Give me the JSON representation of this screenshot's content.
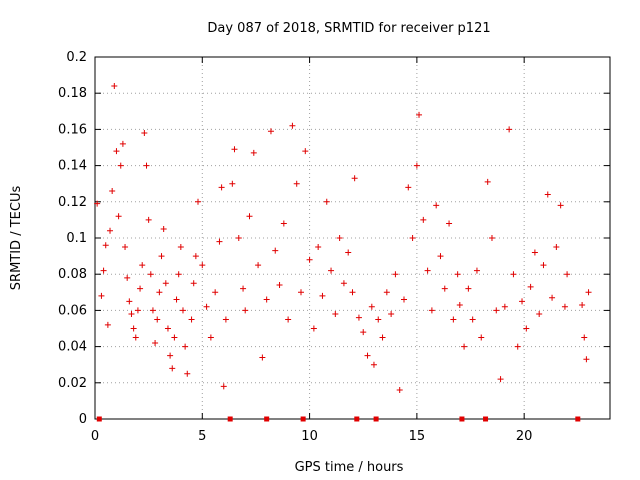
{
  "chart_data": {
    "type": "scatter",
    "title": "Day 087 of 2018, SRMTID for receiver p121",
    "xlabel": "GPS time / hours",
    "ylabel": "SRMTID / TECUs",
    "xlim": [
      0,
      24
    ],
    "ylim": [
      0,
      0.2
    ],
    "x_ticks": [
      0,
      5,
      10,
      15,
      20
    ],
    "x_tick_labels": [
      "0",
      "5",
      "10",
      "15",
      "20"
    ],
    "y_ticks": [
      0,
      0.02,
      0.04,
      0.06,
      0.08,
      0.1,
      0.12,
      0.14,
      0.16,
      0.18,
      0.2
    ],
    "y_tick_labels": [
      "0",
      "0.02",
      "0.04",
      "0.06",
      "0.08",
      "0.1",
      "0.12",
      "0.14",
      "0.16",
      "0.18",
      "0.2"
    ],
    "grid": true,
    "marker": "+",
    "series_color": "#e00000",
    "zero_markers_x": [
      0.2,
      6.3,
      8.0,
      9.7,
      12.2,
      13.1,
      17.1,
      18.2,
      22.5
    ],
    "series": [
      {
        "name": "SRMTID",
        "points": [
          [
            0.1,
            0.119
          ],
          [
            0.3,
            0.068
          ],
          [
            0.4,
            0.082
          ],
          [
            0.5,
            0.096
          ],
          [
            0.6,
            0.052
          ],
          [
            0.7,
            0.104
          ],
          [
            0.8,
            0.126
          ],
          [
            0.9,
            0.184
          ],
          [
            1.0,
            0.148
          ],
          [
            1.1,
            0.112
          ],
          [
            1.2,
            0.14
          ],
          [
            1.3,
            0.152
          ],
          [
            1.4,
            0.095
          ],
          [
            1.5,
            0.078
          ],
          [
            1.6,
            0.065
          ],
          [
            1.7,
            0.058
          ],
          [
            1.8,
            0.05
          ],
          [
            1.9,
            0.045
          ],
          [
            2.0,
            0.06
          ],
          [
            2.1,
            0.072
          ],
          [
            2.2,
            0.085
          ],
          [
            2.3,
            0.158
          ],
          [
            2.4,
            0.14
          ],
          [
            2.5,
            0.11
          ],
          [
            2.6,
            0.08
          ],
          [
            2.7,
            0.06
          ],
          [
            2.8,
            0.042
          ],
          [
            2.9,
            0.055
          ],
          [
            3.0,
            0.07
          ],
          [
            3.1,
            0.09
          ],
          [
            3.2,
            0.105
          ],
          [
            3.3,
            0.075
          ],
          [
            3.4,
            0.05
          ],
          [
            3.5,
            0.035
          ],
          [
            3.6,
            0.028
          ],
          [
            3.7,
            0.045
          ],
          [
            3.8,
            0.066
          ],
          [
            3.9,
            0.08
          ],
          [
            4.0,
            0.095
          ],
          [
            4.1,
            0.06
          ],
          [
            4.2,
            0.04
          ],
          [
            4.3,
            0.025
          ],
          [
            4.5,
            0.055
          ],
          [
            4.6,
            0.075
          ],
          [
            4.7,
            0.09
          ],
          [
            4.8,
            0.12
          ],
          [
            5.0,
            0.085
          ],
          [
            5.2,
            0.062
          ],
          [
            5.4,
            0.045
          ],
          [
            5.6,
            0.07
          ],
          [
            5.8,
            0.098
          ],
          [
            5.9,
            0.128
          ],
          [
            6.0,
            0.018
          ],
          [
            6.1,
            0.055
          ],
          [
            6.4,
            0.13
          ],
          [
            6.5,
            0.149
          ],
          [
            6.7,
            0.1
          ],
          [
            6.9,
            0.072
          ],
          [
            7.0,
            0.06
          ],
          [
            7.2,
            0.112
          ],
          [
            7.4,
            0.147
          ],
          [
            7.6,
            0.085
          ],
          [
            7.8,
            0.034
          ],
          [
            8.0,
            0.066
          ],
          [
            8.2,
            0.159
          ],
          [
            8.4,
            0.093
          ],
          [
            8.6,
            0.074
          ],
          [
            8.8,
            0.108
          ],
          [
            9.0,
            0.055
          ],
          [
            9.2,
            0.162
          ],
          [
            9.4,
            0.13
          ],
          [
            9.6,
            0.07
          ],
          [
            9.8,
            0.148
          ],
          [
            10.0,
            0.088
          ],
          [
            10.2,
            0.05
          ],
          [
            10.4,
            0.095
          ],
          [
            10.6,
            0.068
          ],
          [
            10.8,
            0.12
          ],
          [
            11.0,
            0.082
          ],
          [
            11.2,
            0.058
          ],
          [
            11.4,
            0.1
          ],
          [
            11.6,
            0.075
          ],
          [
            11.8,
            0.092
          ],
          [
            12.0,
            0.07
          ],
          [
            12.1,
            0.133
          ],
          [
            12.3,
            0.056
          ],
          [
            12.5,
            0.048
          ],
          [
            12.7,
            0.035
          ],
          [
            12.9,
            0.062
          ],
          [
            13.0,
            0.03
          ],
          [
            13.2,
            0.055
          ],
          [
            13.4,
            0.045
          ],
          [
            13.6,
            0.07
          ],
          [
            13.8,
            0.058
          ],
          [
            14.0,
            0.08
          ],
          [
            14.2,
            0.016
          ],
          [
            14.4,
            0.066
          ],
          [
            14.6,
            0.128
          ],
          [
            14.8,
            0.1
          ],
          [
            15.0,
            0.14
          ],
          [
            15.1,
            0.168
          ],
          [
            15.3,
            0.11
          ],
          [
            15.5,
            0.082
          ],
          [
            15.7,
            0.06
          ],
          [
            15.9,
            0.118
          ],
          [
            16.1,
            0.09
          ],
          [
            16.3,
            0.072
          ],
          [
            16.5,
            0.108
          ],
          [
            16.7,
            0.055
          ],
          [
            16.9,
            0.08
          ],
          [
            17.0,
            0.063
          ],
          [
            17.2,
            0.04
          ],
          [
            17.4,
            0.072
          ],
          [
            17.6,
            0.055
          ],
          [
            17.8,
            0.082
          ],
          [
            18.0,
            0.045
          ],
          [
            18.3,
            0.131
          ],
          [
            18.5,
            0.1
          ],
          [
            18.7,
            0.06
          ],
          [
            18.9,
            0.022
          ],
          [
            19.1,
            0.062
          ],
          [
            19.3,
            0.16
          ],
          [
            19.5,
            0.08
          ],
          [
            19.7,
            0.04
          ],
          [
            19.9,
            0.065
          ],
          [
            20.1,
            0.05
          ],
          [
            20.3,
            0.073
          ],
          [
            20.5,
            0.092
          ],
          [
            20.7,
            0.058
          ],
          [
            20.9,
            0.085
          ],
          [
            21.1,
            0.124
          ],
          [
            21.3,
            0.067
          ],
          [
            21.5,
            0.095
          ],
          [
            21.7,
            0.118
          ],
          [
            21.9,
            0.062
          ],
          [
            22.0,
            0.08
          ],
          [
            22.7,
            0.063
          ],
          [
            22.8,
            0.045
          ],
          [
            22.9,
            0.033
          ],
          [
            23.0,
            0.07
          ]
        ]
      }
    ]
  }
}
